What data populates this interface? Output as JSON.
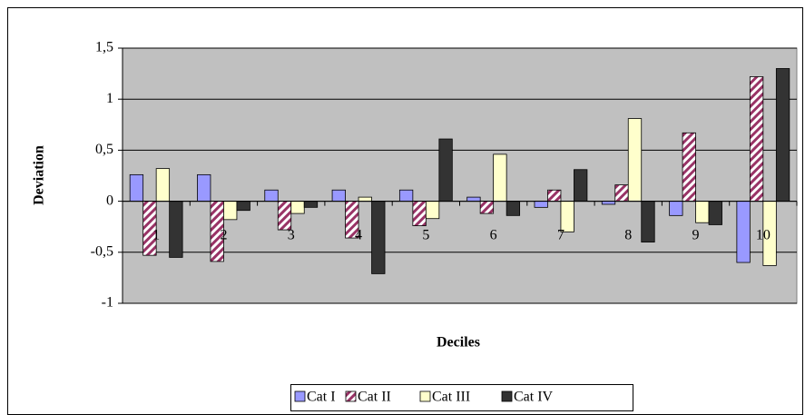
{
  "chart_data": {
    "type": "bar",
    "x_label": "Deciles",
    "y_label": "Deviation",
    "categories": [
      "1",
      "2",
      "3",
      "4",
      "5",
      "6",
      "7",
      "8",
      "9",
      "10"
    ],
    "series": [
      {
        "name": "Cat I",
        "color": "#9999ff",
        "values": [
          0.26,
          0.26,
          0.11,
          0.11,
          0.11,
          0.04,
          -0.06,
          -0.03,
          -0.14,
          -0.6
        ]
      },
      {
        "name": "Cat II",
        "color": "#993366",
        "hatch": true,
        "values": [
          -0.53,
          -0.59,
          -0.28,
          -0.36,
          -0.24,
          -0.12,
          0.11,
          0.16,
          0.67,
          1.22
        ]
      },
      {
        "name": "Cat III",
        "color": "#ffffcc",
        "values": [
          0.32,
          -0.18,
          -0.12,
          0.04,
          -0.17,
          0.46,
          -0.3,
          0.81,
          -0.21,
          -0.63
        ]
      },
      {
        "name": "Cat IV",
        "color": "#333333",
        "values": [
          -0.55,
          -0.09,
          -0.06,
          -0.71,
          0.61,
          -0.14,
          0.31,
          -0.4,
          -0.23,
          1.3
        ]
      }
    ],
    "ylim": [
      -1,
      1.5
    ],
    "yticks": [
      -1,
      {
        "value": -0.5,
        "label": "-0,5"
      },
      0,
      {
        "value": 0.5,
        "label": "0,5"
      },
      1,
      {
        "value": 1.5,
        "label": "1,5"
      }
    ],
    "grid": true,
    "plot_background": "#c0c0c0",
    "legend": "bottom"
  }
}
